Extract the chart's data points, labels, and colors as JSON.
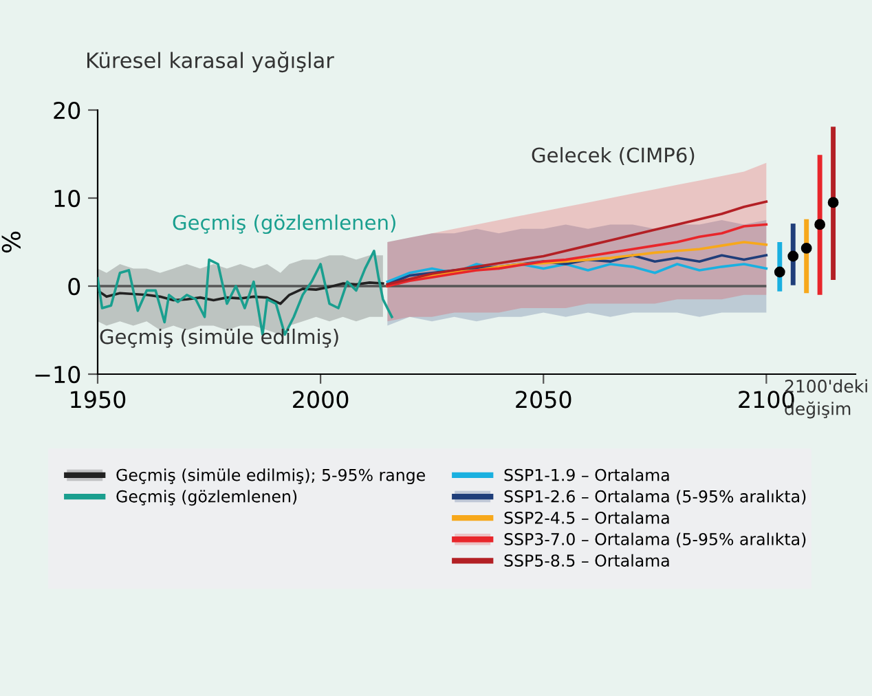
{
  "chart_data": {
    "type": "line",
    "title": "Küresel karasal yağışlar",
    "ylabel": "%",
    "xlim": [
      1950,
      2120
    ],
    "xticks": [
      1950,
      2000,
      2050,
      2100
    ],
    "ylim": [
      -10,
      20
    ],
    "yticks": [
      {
        "value": -10,
        "label": "−10"
      },
      0,
      10,
      20
    ],
    "grid": false,
    "legend": "bottom",
    "ref_lines": [
      {
        "axis": "y",
        "value": 0,
        "color": "#555555"
      }
    ],
    "annotations": [
      "Geçmiş (gözlemlenen)",
      "Geçmiş (simüle edilmiş)",
      "Gelecek (CIMP6)",
      "2100'deki değişim"
    ],
    "series": [
      {
        "name": "Geçmiş (simüle edilmiş); 5-95% range",
        "color": "#222222",
        "x": [
          1950,
          1952,
          1955,
          1958,
          1961,
          1964,
          1967,
          1970,
          1973,
          1976,
          1979,
          1982,
          1985,
          1988,
          1991,
          1993,
          1996,
          1999,
          2002,
          2005,
          2008,
          2011,
          2014
        ],
        "values": [
          -0.5,
          -1.2,
          -0.8,
          -0.9,
          -1.0,
          -1.2,
          -1.6,
          -1.5,
          -1.3,
          -1.6,
          -1.3,
          -1.4,
          -1.2,
          -1.3,
          -2.0,
          -1.0,
          -0.3,
          -0.4,
          -0.1,
          0.3,
          0.2,
          0.4,
          0.3
        ],
        "lower": [
          -4.0,
          -4.5,
          -4.0,
          -4.5,
          -4.0,
          -5.0,
          -4.5,
          -5.0,
          -4.5,
          -4.5,
          -5.0,
          -4.5,
          -4.5,
          -5.0,
          -5.5,
          -4.5,
          -4.0,
          -3.5,
          -4.0,
          -3.5,
          -4.0,
          -3.5,
          -3.5
        ],
        "upper": [
          2.0,
          1.5,
          2.5,
          2.0,
          2.0,
          1.5,
          2.0,
          2.5,
          2.0,
          2.5,
          2.0,
          2.5,
          2.0,
          2.5,
          1.5,
          2.5,
          3.0,
          3.0,
          3.5,
          3.5,
          3.0,
          3.5,
          3.5
        ]
      },
      {
        "name": "Geçmiş (gözlemlenen)",
        "color": "#1a9f8f",
        "x": [
          1950,
          1951,
          1953,
          1955,
          1957,
          1959,
          1961,
          1963,
          1965,
          1966,
          1968,
          1970,
          1972,
          1974,
          1975,
          1977,
          1979,
          1981,
          1983,
          1985,
          1987,
          1988,
          1990,
          1992,
          1994,
          1996,
          1998,
          2000,
          2002,
          2004,
          2006,
          2008,
          2010,
          2012,
          2013,
          2014,
          2016
        ],
        "values": [
          0.9,
          -2.5,
          -2.2,
          1.5,
          1.8,
          -2.8,
          -0.5,
          -0.5,
          -4.1,
          -1.0,
          -1.8,
          -1.0,
          -1.5,
          -3.5,
          3.0,
          2.5,
          -2.0,
          0.0,
          -2.5,
          0.5,
          -5.5,
          -1.5,
          -2.0,
          -5.5,
          -3.5,
          -1.0,
          0.5,
          2.5,
          -2.0,
          -2.5,
          0.5,
          -0.5,
          2.0,
          4.0,
          1.0,
          -1.5,
          -3.5
        ]
      },
      {
        "name": "SSP1-1.9 – Ortalama",
        "color": "#1ab0e0",
        "x": [
          2015,
          2020,
          2025,
          2030,
          2035,
          2040,
          2045,
          2050,
          2055,
          2060,
          2065,
          2070,
          2075,
          2080,
          2085,
          2090,
          2095,
          2100
        ],
        "values": [
          0.5,
          1.5,
          2.0,
          1.5,
          2.5,
          2.0,
          2.5,
          2.0,
          2.5,
          1.8,
          2.5,
          2.2,
          1.5,
          2.5,
          1.8,
          2.2,
          2.5,
          2.0
        ]
      },
      {
        "name": "SSP1-2.6 – Ortalama (5-95% aralıkta)",
        "color": "#1f3e7a",
        "x": [
          2015,
          2020,
          2025,
          2030,
          2035,
          2040,
          2045,
          2050,
          2055,
          2060,
          2065,
          2070,
          2075,
          2080,
          2085,
          2090,
          2095,
          2100
        ],
        "values": [
          0.2,
          1.2,
          1.5,
          1.8,
          2.0,
          2.2,
          2.5,
          2.8,
          2.5,
          3.0,
          2.8,
          3.5,
          2.8,
          3.2,
          2.8,
          3.5,
          3.0,
          3.5
        ],
        "lower": [
          -4.5,
          -3.5,
          -4.0,
          -3.5,
          -4.0,
          -3.5,
          -3.5,
          -3.0,
          -3.5,
          -3.0,
          -3.5,
          -3.0,
          -3.0,
          -3.0,
          -3.5,
          -3.0,
          -3.0,
          -3.0
        ],
        "upper": [
          5.0,
          5.5,
          6.0,
          6.0,
          6.5,
          6.0,
          6.5,
          6.5,
          7.0,
          6.5,
          7.0,
          7.0,
          6.5,
          7.0,
          7.0,
          7.5,
          7.0,
          7.5
        ]
      },
      {
        "name": "SSP2-4.5 – Ortalama",
        "color": "#f7a81b",
        "x": [
          2015,
          2020,
          2025,
          2030,
          2035,
          2040,
          2045,
          2050,
          2055,
          2060,
          2065,
          2070,
          2075,
          2080,
          2085,
          2090,
          2095,
          2100
        ],
        "values": [
          0.0,
          0.8,
          1.2,
          1.6,
          1.8,
          2.2,
          2.5,
          2.6,
          2.8,
          3.0,
          3.2,
          3.5,
          3.8,
          4.0,
          4.2,
          4.6,
          5.0,
          4.7
        ]
      },
      {
        "name": "SSP3-7.0 – Ortalama (5-95% aralıkta)",
        "color": "#e8262b",
        "x": [
          2015,
          2020,
          2025,
          2030,
          2035,
          2040,
          2045,
          2050,
          2055,
          2060,
          2065,
          2070,
          2075,
          2080,
          2085,
          2090,
          2095,
          2100
        ],
        "values": [
          0.0,
          0.6,
          1.0,
          1.4,
          1.8,
          2.0,
          2.4,
          2.8,
          3.0,
          3.4,
          3.8,
          4.2,
          4.6,
          5.0,
          5.6,
          6.0,
          6.8,
          7.0
        ],
        "lower": [
          -4.0,
          -3.5,
          -3.5,
          -3.0,
          -3.0,
          -3.0,
          -2.5,
          -2.5,
          -2.5,
          -2.0,
          -2.0,
          -2.0,
          -2.0,
          -1.5,
          -1.5,
          -1.5,
          -1.0,
          -1.0
        ],
        "upper": [
          5.0,
          5.5,
          6.0,
          6.5,
          7.0,
          7.5,
          8.0,
          8.5,
          9.0,
          9.5,
          10.0,
          10.5,
          11.0,
          11.5,
          12.0,
          12.5,
          13.0,
          14.0
        ]
      },
      {
        "name": "SSP5-8.5 – Ortalama",
        "color": "#b32025",
        "x": [
          2015,
          2020,
          2025,
          2030,
          2035,
          2040,
          2045,
          2050,
          2055,
          2060,
          2065,
          2070,
          2075,
          2080,
          2085,
          2090,
          2095,
          2100
        ],
        "values": [
          0.2,
          0.8,
          1.4,
          1.8,
          2.2,
          2.6,
          3.0,
          3.4,
          4.0,
          4.6,
          5.2,
          5.8,
          6.4,
          7.0,
          7.6,
          8.2,
          9.0,
          9.6
        ]
      },
      {
        "type": "scatter",
        "marker": "circle",
        "color": "#000000",
        "x": [
          2103,
          2106,
          2109,
          2112,
          2115
        ],
        "values": [
          1.6,
          3.4,
          4.3,
          7.0,
          9.5
        ],
        "errors": [
          [
            -0.6,
            5.0
          ],
          [
            0.1,
            7.1
          ],
          [
            -0.8,
            7.6
          ],
          [
            -1.0,
            14.9
          ],
          [
            0.7,
            18.1
          ]
        ]
      }
    ]
  }
}
